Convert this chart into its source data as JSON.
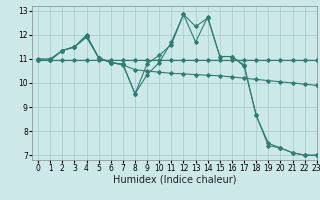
{
  "xlabel": "Humidex (Indice chaleur)",
  "xlim": [
    -0.5,
    23
  ],
  "ylim": [
    6.8,
    13.2
  ],
  "yticks": [
    7,
    8,
    9,
    10,
    11,
    12,
    13
  ],
  "xticks": [
    0,
    1,
    2,
    3,
    4,
    5,
    6,
    7,
    8,
    9,
    10,
    11,
    12,
    13,
    14,
    15,
    16,
    17,
    18,
    19,
    20,
    21,
    22,
    23
  ],
  "bg_color": "#cce8e8",
  "line_color": "#2e7d72",
  "grid_color": "#aacfcf",
  "series": [
    {
      "x": [
        0,
        1,
        2,
        3,
        4,
        5,
        6,
        7,
        8,
        9,
        10,
        11,
        12,
        13,
        14,
        15,
        16,
        17,
        18,
        19,
        20,
        21,
        22,
        23
      ],
      "y": [
        10.95,
        10.95,
        10.95,
        10.95,
        10.95,
        10.95,
        10.95,
        10.95,
        10.95,
        10.95,
        10.95,
        10.95,
        10.95,
        10.95,
        10.95,
        10.95,
        10.95,
        10.95,
        10.95,
        10.95,
        10.95,
        10.95,
        10.95,
        10.95
      ]
    },
    {
      "x": [
        0,
        1,
        2,
        3,
        4,
        5,
        6,
        7,
        8,
        9,
        10,
        11,
        12,
        13,
        14,
        15,
        16,
        17,
        18,
        19,
        20,
        21,
        22,
        23
      ],
      "y": [
        11.0,
        11.0,
        11.35,
        11.5,
        11.9,
        11.05,
        10.85,
        10.75,
        10.55,
        10.5,
        10.45,
        10.4,
        10.38,
        10.35,
        10.32,
        10.3,
        10.25,
        10.2,
        10.15,
        10.1,
        10.05,
        10.0,
        9.95,
        9.9
      ]
    },
    {
      "x": [
        0,
        1,
        2,
        3,
        4,
        5,
        6,
        7,
        8,
        9,
        10,
        11,
        12,
        13,
        14,
        15,
        16,
        17,
        18,
        19,
        20,
        21,
        22,
        23
      ],
      "y": [
        10.95,
        10.95,
        11.35,
        11.5,
        11.95,
        11.05,
        10.85,
        10.78,
        9.55,
        10.8,
        11.15,
        11.6,
        12.85,
        11.7,
        12.75,
        11.1,
        11.1,
        10.75,
        8.65,
        7.4,
        7.3,
        7.1,
        7.0,
        7.0
      ]
    },
    {
      "x": [
        0,
        1,
        2,
        3,
        4,
        5,
        6,
        7,
        8,
        9,
        10,
        11,
        12,
        13,
        14,
        15,
        16,
        17,
        18,
        19,
        20,
        21,
        22,
        23
      ],
      "y": [
        10.95,
        10.95,
        11.35,
        11.5,
        12.0,
        11.05,
        10.85,
        10.78,
        9.55,
        10.35,
        10.85,
        11.7,
        12.85,
        12.35,
        12.7,
        11.1,
        11.1,
        10.7,
        8.65,
        7.5,
        7.3,
        7.1,
        7.0,
        7.0
      ]
    }
  ],
  "tick_fontsize": 5.5,
  "label_fontsize": 7
}
